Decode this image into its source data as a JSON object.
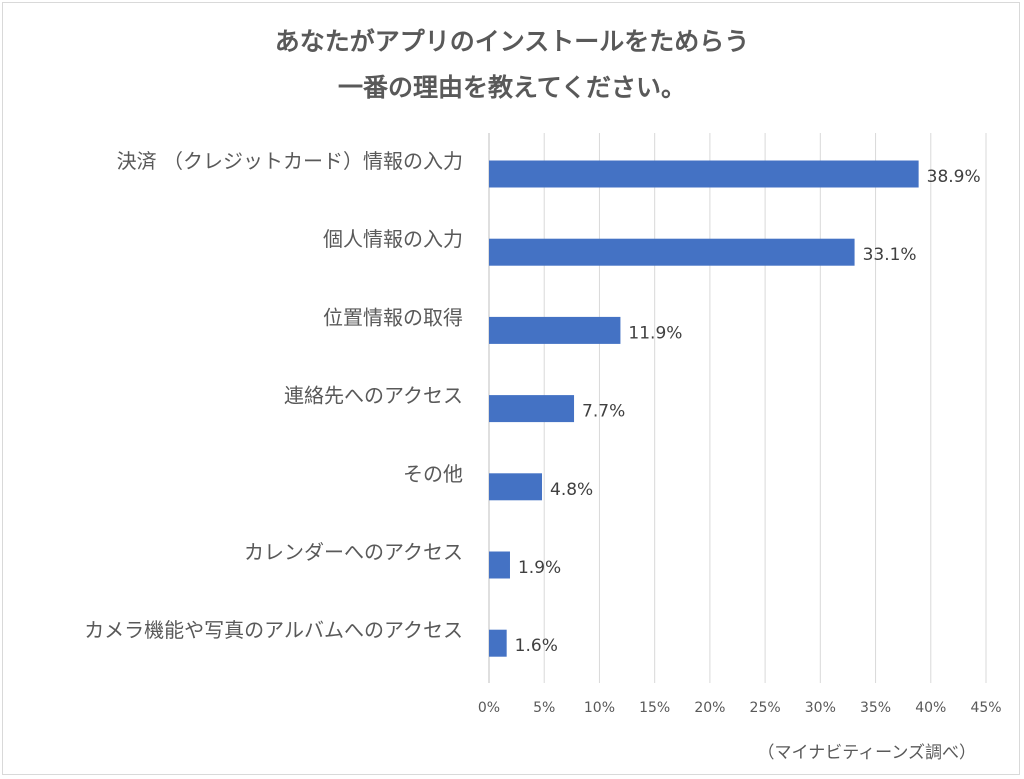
{
  "chart_data": {
    "type": "bar",
    "orientation": "horizontal",
    "title_lines": [
      "あなたがアプリのインストールをためらう",
      "一番の理由を教えてください。"
    ],
    "categories": [
      "決済 （クレジットカード）情報の入力",
      "個人情報の入力",
      "位置情報の取得",
      "連絡先へのアクセス",
      "その他",
      "カレンダーへのアクセス",
      "カメラ機能や写真のアルバムへのアクセス"
    ],
    "values": [
      38.9,
      33.1,
      11.9,
      7.7,
      4.8,
      1.9,
      1.6
    ],
    "data_labels": [
      "38.9%",
      "33.1%",
      "11.9%",
      "7.7%",
      "4.8%",
      "1.9%",
      "1.6%"
    ],
    "x_ticks": [
      0,
      5,
      10,
      15,
      20,
      25,
      30,
      35,
      40,
      45
    ],
    "x_tick_labels": [
      "0%",
      "5%",
      "10%",
      "15%",
      "20%",
      "25%",
      "30%",
      "35%",
      "40%",
      "45%"
    ],
    "xlim": [
      0,
      45
    ],
    "grid": true,
    "legend": "none",
    "bar_color": "#4472c4",
    "gridline_color": "#d9d9d9",
    "text_color": "#595959"
  },
  "source_note": "（マイナビティーンズ調べ）"
}
